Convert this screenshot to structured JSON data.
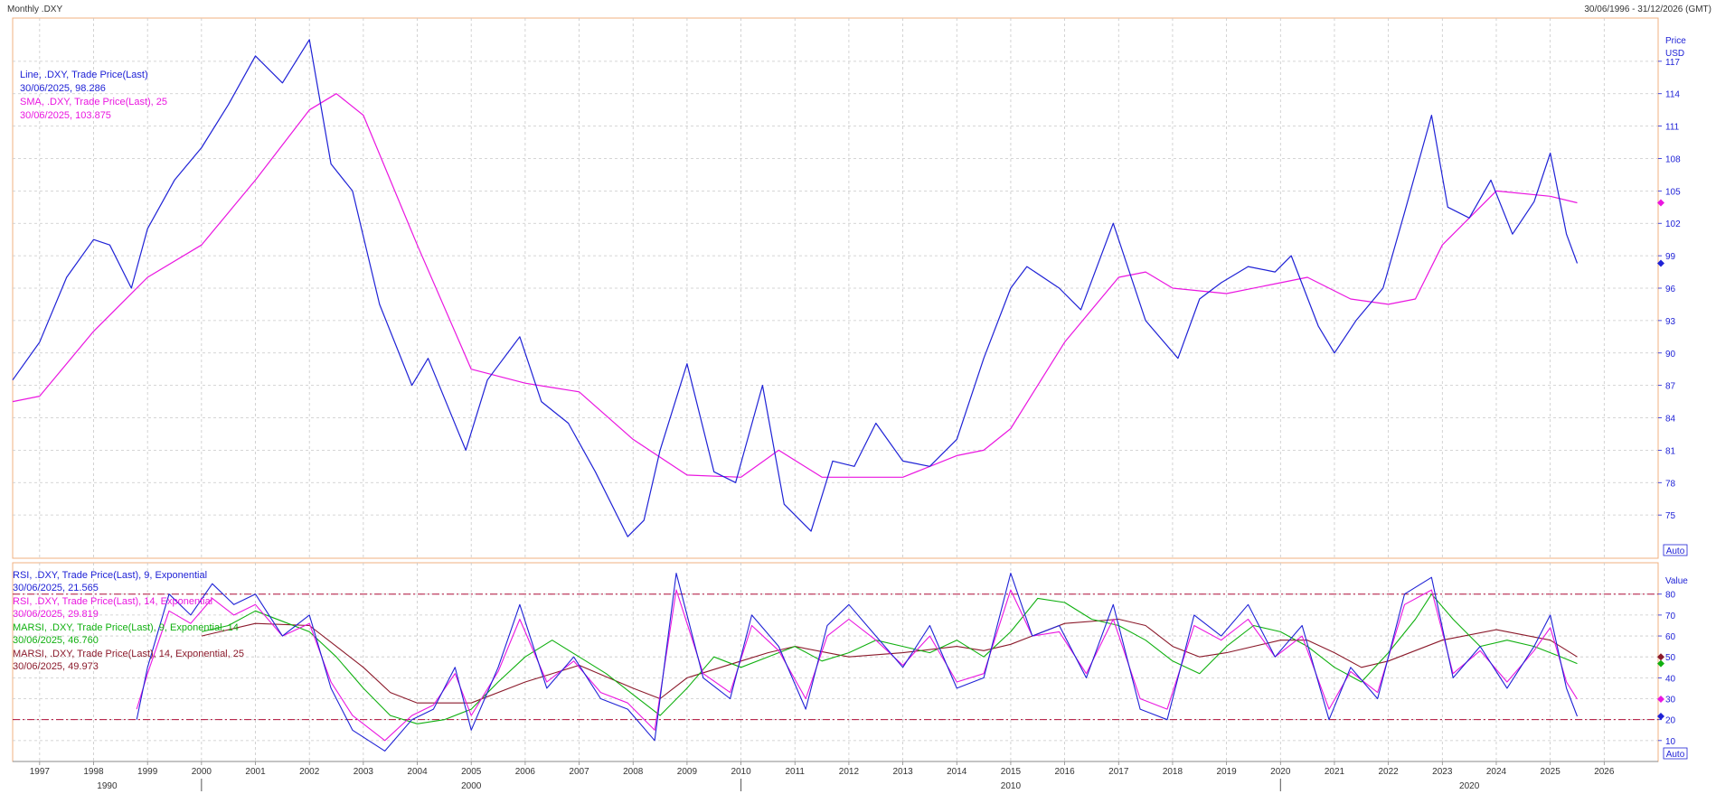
{
  "header": {
    "left": "Monthly .DXY",
    "right": "30/06/1996 - 31/12/2026 (GMT)"
  },
  "chart_data": [
    {
      "type": "line",
      "panel": "price",
      "axis_title": "Price",
      "axis_unit": "USD",
      "auto_label": "Auto",
      "ylim": [
        71,
        121
      ],
      "yticks": [
        75,
        78,
        81,
        84,
        87,
        90,
        93,
        96,
        99,
        102,
        105,
        108,
        111,
        114,
        117
      ],
      "xlim": [
        1996.5,
        2027.0
      ],
      "grid": true,
      "legend_position": "top-left",
      "series": [
        {
          "name": "Line, .DXY, Trade Price(Last)",
          "last_label": "30/06/2025, 98.286",
          "color": "#1f22d6",
          "x": [
            1996.5,
            1997.0,
            1997.5,
            1998.0,
            1998.3,
            1998.7,
            1999.0,
            1999.5,
            2000.0,
            2000.5,
            2001.0,
            2001.5,
            2002.0,
            2002.4,
            2002.8,
            2003.3,
            2003.9,
            2004.2,
            2004.9,
            2005.3,
            2005.9,
            2006.3,
            2006.8,
            2007.3,
            2007.9,
            2008.2,
            2008.5,
            2009.0,
            2009.5,
            2009.9,
            2010.4,
            2010.8,
            2011.3,
            2011.7,
            2012.1,
            2012.5,
            2013.0,
            2013.5,
            2014.0,
            2014.5,
            2015.0,
            2015.3,
            2015.9,
            2016.3,
            2016.9,
            2017.5,
            2018.1,
            2018.5,
            2018.9,
            2019.4,
            2019.9,
            2020.2,
            2020.7,
            2021.0,
            2021.4,
            2021.9,
            2022.3,
            2022.8,
            2023.1,
            2023.5,
            2023.9,
            2024.3,
            2024.7,
            2025.0,
            2025.3,
            2025.5
          ],
          "y": [
            87.5,
            91,
            97,
            100.5,
            100,
            96,
            101.5,
            106,
            109,
            113,
            117.5,
            115,
            119,
            107.5,
            105,
            94.5,
            87,
            89.5,
            81,
            87.5,
            91.5,
            85.5,
            83.5,
            79,
            73,
            74.5,
            81,
            89,
            79,
            78,
            87,
            76,
            73.5,
            80,
            79.5,
            83.5,
            80,
            79.5,
            82,
            89.5,
            96,
            98,
            96,
            94,
            102,
            93,
            89.5,
            95,
            96.5,
            98,
            97.5,
            99,
            92.5,
            90,
            93,
            96,
            103,
            112,
            103.5,
            102.5,
            106,
            101,
            104,
            108.5,
            101,
            98.3
          ]
        },
        {
          "name": "SMA, .DXY, Trade Price(Last), 25",
          "last_label": "30/06/2025, 103.875",
          "color": "#ea16e0",
          "x": [
            1996.5,
            1997.0,
            1998.0,
            1999.0,
            2000.0,
            2001.0,
            2002.0,
            2002.5,
            2003.0,
            2004.0,
            2005.0,
            2006.0,
            2006.5,
            2007.0,
            2008.0,
            2009.0,
            2010.0,
            2010.7,
            2011.5,
            2012.5,
            2013.0,
            2014.0,
            2014.5,
            2015.0,
            2016.0,
            2017.0,
            2017.5,
            2018.0,
            2019.0,
            2020.0,
            2020.5,
            2021.3,
            2022.0,
            2022.5,
            2023.0,
            2024.0,
            2025.0,
            2025.5
          ],
          "y": [
            85.5,
            86,
            92,
            97,
            100,
            106,
            112.5,
            114,
            112,
            100,
            88.5,
            87.2,
            86.8,
            86.4,
            82,
            78.7,
            78.5,
            81,
            78.5,
            78.5,
            78.5,
            80.5,
            81,
            83,
            91,
            97,
            97.5,
            96,
            95.5,
            96.5,
            97,
            95,
            94.5,
            95,
            100,
            105,
            104.5,
            103.9
          ]
        }
      ]
    },
    {
      "type": "line",
      "panel": "indicator",
      "axis_title": "Value",
      "auto_label": "Auto",
      "ylim": [
        0,
        95
      ],
      "yticks": [
        10,
        20,
        30,
        40,
        50,
        60,
        70,
        80
      ],
      "reference_lines": [
        80,
        20
      ],
      "xlim": [
        1996.5,
        2027.0
      ],
      "grid": true,
      "legend_position": "top-left",
      "series": [
        {
          "name": "RSI, .DXY, Trade Price(Last), 9, Exponential",
          "last_label": "30/06/2025, 21.565",
          "color": "#1f22d6",
          "x": [
            1998.8,
            1999.0,
            1999.4,
            1999.8,
            2000.2,
            2000.6,
            2001.0,
            2001.5,
            2002.0,
            2002.4,
            2002.8,
            2003.4,
            2003.9,
            2004.3,
            2004.7,
            2005.0,
            2005.5,
            2005.9,
            2006.4,
            2006.9,
            2007.4,
            2007.9,
            2008.4,
            2008.8,
            2009.3,
            2009.8,
            2010.2,
            2010.7,
            2011.2,
            2011.6,
            2012.0,
            2012.5,
            2013.0,
            2013.5,
            2014.0,
            2014.5,
            2015.0,
            2015.4,
            2015.9,
            2016.4,
            2016.9,
            2017.4,
            2017.9,
            2018.4,
            2018.9,
            2019.4,
            2019.9,
            2020.4,
            2020.9,
            2021.3,
            2021.8,
            2022.3,
            2022.8,
            2023.2,
            2023.7,
            2024.2,
            2024.7,
            2025.0,
            2025.3,
            2025.5
          ],
          "y": [
            20,
            45,
            80,
            70,
            85,
            75,
            80,
            60,
            70,
            35,
            15,
            5,
            20,
            25,
            45,
            15,
            45,
            75,
            35,
            50,
            30,
            25,
            10,
            90,
            40,
            30,
            70,
            55,
            25,
            65,
            75,
            60,
            45,
            65,
            35,
            40,
            90,
            60,
            65,
            40,
            75,
            25,
            20,
            70,
            60,
            75,
            50,
            65,
            20,
            45,
            30,
            80,
            88,
            40,
            55,
            35,
            55,
            70,
            35,
            21.6
          ]
        },
        {
          "name": "RSI, .DXY, Trade Price(Last), 14, Exponential",
          "last_label": "30/06/2025, 29.819",
          "color": "#ea16e0",
          "x": [
            1998.8,
            1999.0,
            1999.4,
            1999.8,
            2000.2,
            2000.6,
            2001.0,
            2001.5,
            2002.0,
            2002.4,
            2002.8,
            2003.4,
            2003.9,
            2004.3,
            2004.7,
            2005.0,
            2005.5,
            2005.9,
            2006.4,
            2006.9,
            2007.4,
            2007.9,
            2008.4,
            2008.8,
            2009.3,
            2009.8,
            2010.2,
            2010.7,
            2011.2,
            2011.6,
            2012.0,
            2012.5,
            2013.0,
            2013.5,
            2014.0,
            2014.5,
            2015.0,
            2015.4,
            2015.9,
            2016.4,
            2016.9,
            2017.4,
            2017.9,
            2018.4,
            2018.9,
            2019.4,
            2019.9,
            2020.4,
            2020.9,
            2021.3,
            2021.8,
            2022.3,
            2022.8,
            2023.2,
            2023.7,
            2024.2,
            2024.7,
            2025.0,
            2025.3,
            2025.5
          ],
          "y": [
            25,
            42,
            72,
            66,
            78,
            70,
            75,
            60,
            66,
            38,
            22,
            10,
            22,
            27,
            42,
            22,
            43,
            68,
            38,
            48,
            33,
            28,
            15,
            82,
            42,
            33,
            65,
            53,
            30,
            60,
            68,
            58,
            46,
            60,
            38,
            42,
            82,
            60,
            62,
            42,
            68,
            30,
            25,
            65,
            58,
            68,
            50,
            60,
            25,
            43,
            33,
            75,
            82,
            42,
            53,
            38,
            53,
            64,
            38,
            29.8
          ]
        },
        {
          "name": "MARSI, .DXY, Trade Price(Last), 9, Exponential, 14",
          "last_label": "30/06/2025, 46.760",
          "color": "#10b010",
          "x": [
            2000.0,
            2000.5,
            2001.0,
            2001.5,
            2002.0,
            2002.5,
            2003.0,
            2003.5,
            2004.0,
            2004.5,
            2005.0,
            2005.5,
            2006.0,
            2006.5,
            2007.0,
            2007.5,
            2008.0,
            2008.5,
            2009.0,
            2009.5,
            2010.0,
            2010.5,
            2011.0,
            2011.5,
            2012.0,
            2012.5,
            2013.0,
            2013.5,
            2014.0,
            2014.5,
            2015.0,
            2015.5,
            2016.0,
            2016.5,
            2017.0,
            2017.5,
            2018.0,
            2018.5,
            2019.0,
            2019.5,
            2020.0,
            2020.5,
            2021.0,
            2021.5,
            2022.0,
            2022.5,
            2022.8,
            2023.2,
            2023.7,
            2024.2,
            2024.7,
            2025.2,
            2025.5
          ],
          "y": [
            62,
            65,
            72,
            67,
            62,
            50,
            35,
            22,
            18,
            20,
            25,
            38,
            50,
            58,
            50,
            42,
            32,
            22,
            35,
            50,
            45,
            50,
            55,
            48,
            52,
            58,
            55,
            52,
            58,
            50,
            62,
            78,
            76,
            68,
            65,
            58,
            48,
            42,
            55,
            65,
            62,
            55,
            45,
            38,
            52,
            68,
            80,
            68,
            55,
            58,
            55,
            50,
            46.8
          ]
        },
        {
          "name": "MARSI, .DXY, Trade Price(Last), 14, Exponential, 25",
          "last_label": "30/06/2025, 49.973",
          "color": "#8b1a2b",
          "x": [
            2000.0,
            2000.5,
            2001.0,
            2002.0,
            2002.5,
            2003.0,
            2003.5,
            2004.0,
            2005.0,
            2006.0,
            2007.0,
            2008.0,
            2008.5,
            2009.0,
            2010.0,
            2010.5,
            2011.0,
            2012.0,
            2013.0,
            2014.0,
            2014.5,
            2015.0,
            2016.0,
            2017.0,
            2017.5,
            2018.0,
            2018.5,
            2019.0,
            2020.0,
            2020.5,
            2021.0,
            2021.5,
            2022.0,
            2023.0,
            2024.0,
            2025.0,
            2025.5
          ],
          "y": [
            60,
            63,
            66,
            65,
            55,
            45,
            33,
            28,
            28,
            38,
            46,
            35,
            30,
            40,
            48,
            52,
            55,
            50,
            52,
            55,
            53,
            56,
            66,
            68,
            65,
            55,
            50,
            52,
            58,
            58,
            52,
            45,
            48,
            58,
            63,
            58,
            50.0
          ]
        }
      ]
    }
  ],
  "x_year_labels": [
    "1997",
    "1998",
    "1999",
    "2000",
    "2001",
    "2002",
    "2003",
    "2004",
    "2005",
    "2006",
    "2007",
    "2008",
    "2009",
    "2010",
    "2011",
    "2012",
    "2013",
    "2014",
    "2015",
    "2016",
    "2017",
    "2018",
    "2019",
    "2020",
    "2021",
    "2022",
    "2023",
    "2024",
    "2025",
    "2026"
  ],
  "x_decade_labels": [
    "1990",
    "2000",
    "2010",
    "2020"
  ]
}
